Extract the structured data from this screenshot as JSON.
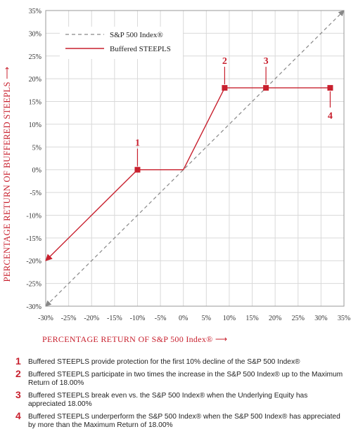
{
  "chart_data": {
    "type": "line",
    "ylabel": "PERCENTAGE RETURN OF BUFFERED STEEPLS",
    "xlabel": "PERCENTAGE RETURN OF S&P 500 Index®",
    "x_ticks": [
      "-30%",
      "-25%",
      "-20%",
      "-15%",
      "-10%",
      "-5%",
      "0%",
      "5%",
      "10%",
      "15%",
      "20%",
      "25%",
      "30%",
      "35%"
    ],
    "y_ticks": [
      "35%",
      "30%",
      "25%",
      "20%",
      "15%",
      "10%",
      "5%",
      "0%",
      "-5%",
      "-10%",
      "-15%",
      "-20%",
      "-25%",
      "-30%"
    ],
    "xlim": [
      -30,
      35
    ],
    "ylim": [
      -30,
      35
    ],
    "grid": true,
    "legend_position": "top-left",
    "series": [
      {
        "name": "S&P 500 Index®",
        "style": "dashed",
        "color": "#888888",
        "x": [
          -30,
          35
        ],
        "y": [
          -30,
          35
        ]
      },
      {
        "name": "Buffered STEEPLS",
        "style": "solid",
        "color": "#c8202e",
        "x": [
          -30,
          -10,
          0,
          9,
          18,
          32
        ],
        "y": [
          -20,
          0,
          0,
          18,
          18,
          18
        ]
      }
    ],
    "markers": [
      {
        "label": "1",
        "x": -10,
        "y": 0,
        "label_side": "above"
      },
      {
        "label": "2",
        "x": 9,
        "y": 18,
        "label_side": "above"
      },
      {
        "label": "3",
        "x": 18,
        "y": 18,
        "label_side": "above"
      },
      {
        "label": "4",
        "x": 32,
        "y": 18,
        "label_side": "below"
      }
    ]
  },
  "notes": [
    {
      "num": "1",
      "text": "Buffered STEEPLS provide protection for the first 10% decline of the S&P 500 Index®"
    },
    {
      "num": "2",
      "text": "Buffered STEEPLS participate in two times the increase in the S&P 500 Index® up to the Maximum Return of 18.00%"
    },
    {
      "num": "3",
      "text": "Buffered STEEPLS break even vs. the S&P 500 Index® when the Underlying Equity has appreciated 18.00%"
    },
    {
      "num": "4",
      "text": "Buffered STEEPLS underperform the S&P 500 Index® when the S&P 500 Index® has appreciated by more than the Maximum Return of 18.00%"
    }
  ],
  "colors": {
    "accent": "#c8202e",
    "dashed": "#888888",
    "grid": "#d9d9d9",
    "axis": "#999999"
  }
}
